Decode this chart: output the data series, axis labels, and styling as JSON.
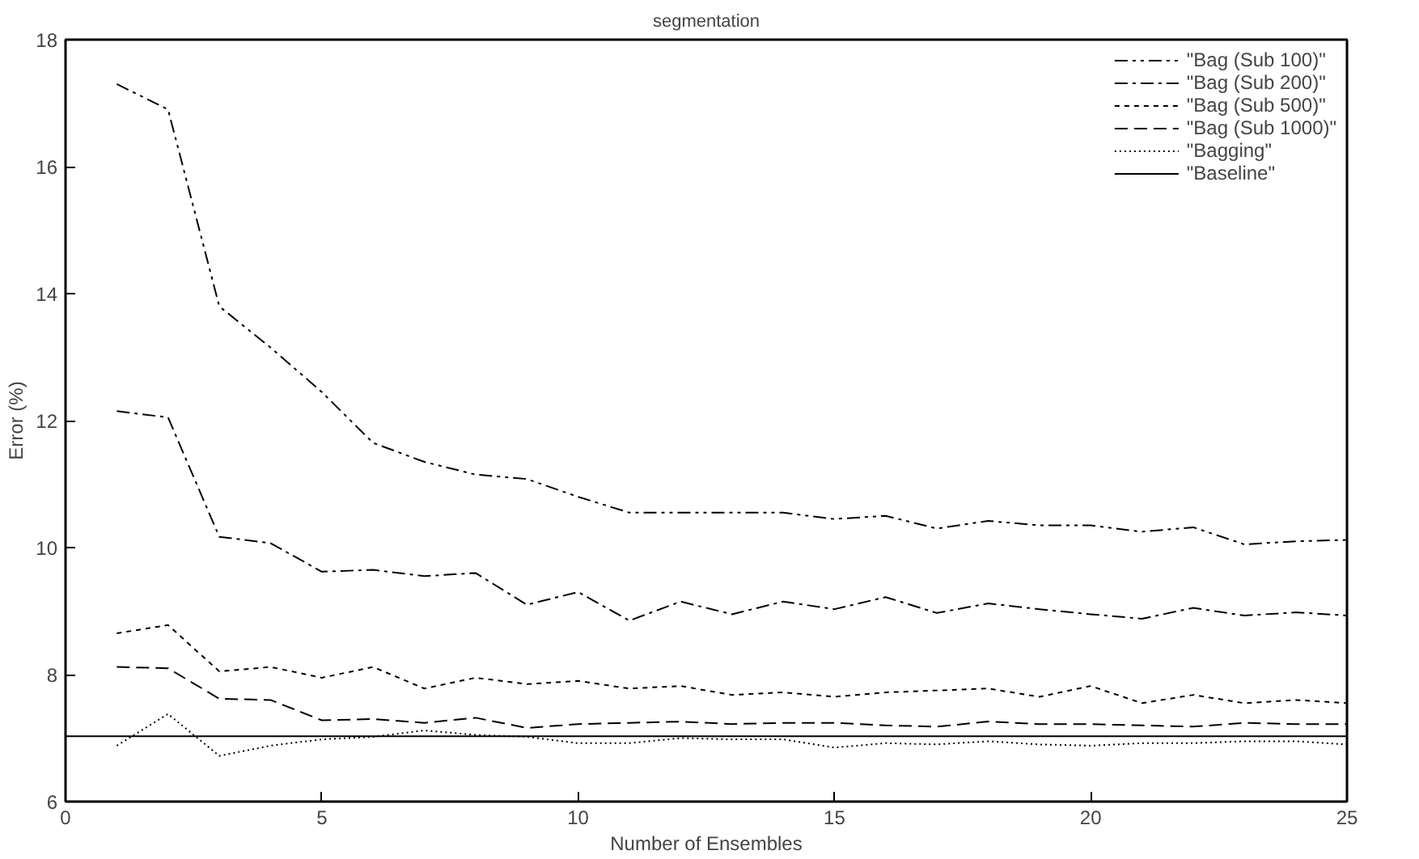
{
  "chart_data": {
    "type": "line",
    "title": "segmentation",
    "xlabel": "Number of Ensembles",
    "ylabel": "Error (%)",
    "x": [
      1,
      2,
      3,
      4,
      5,
      6,
      7,
      8,
      9,
      10,
      11,
      12,
      13,
      14,
      15,
      16,
      17,
      18,
      19,
      20,
      21,
      22,
      23,
      24,
      25
    ],
    "series": [
      {
        "name": "\"Bag (Sub 100)\"",
        "color": "#000000",
        "line_style": "dashdotdot",
        "values": [
          17.3,
          16.9,
          13.8,
          13.15,
          12.45,
          11.65,
          11.35,
          11.15,
          11.08,
          10.8,
          10.55,
          10.55,
          10.55,
          10.55,
          10.45,
          10.5,
          10.3,
          10.42,
          10.35,
          10.35,
          10.25,
          10.32,
          10.05,
          10.1,
          10.12
        ]
      },
      {
        "name": "\"Bag (Sub 200)\"",
        "color": "#000000",
        "line_style": "dashdot",
        "values": [
          12.15,
          12.05,
          10.17,
          10.07,
          9.62,
          9.65,
          9.55,
          9.6,
          9.1,
          9.3,
          8.85,
          9.15,
          8.95,
          9.15,
          9.03,
          9.22,
          8.97,
          9.12,
          9.03,
          8.95,
          8.88,
          9.05,
          8.93,
          8.98,
          8.93
        ]
      },
      {
        "name": "\"Bag (Sub 500)\"",
        "color": "#000000",
        "line_style": "shortdash",
        "values": [
          8.65,
          8.78,
          8.05,
          8.12,
          7.95,
          8.12,
          7.78,
          7.95,
          7.85,
          7.9,
          7.78,
          7.82,
          7.68,
          7.72,
          7.65,
          7.72,
          7.75,
          7.78,
          7.65,
          7.82,
          7.55,
          7.68,
          7.55,
          7.6,
          7.55
        ]
      },
      {
        "name": "\"Bag (Sub 1000)\"",
        "color": "#000000",
        "line_style": "dashed",
        "values": [
          8.12,
          8.1,
          7.62,
          7.6,
          7.28,
          7.3,
          7.24,
          7.32,
          7.16,
          7.22,
          7.24,
          7.26,
          7.22,
          7.24,
          7.24,
          7.2,
          7.18,
          7.26,
          7.22,
          7.22,
          7.2,
          7.18,
          7.24,
          7.22,
          7.22
        ]
      },
      {
        "name": "\"Bagging\"",
        "color": "#000000",
        "line_style": "dotted",
        "values": [
          6.88,
          7.38,
          6.72,
          6.88,
          6.98,
          7.02,
          7.12,
          7.05,
          7.02,
          6.92,
          6.92,
          7.0,
          6.98,
          6.98,
          6.85,
          6.92,
          6.9,
          6.95,
          6.9,
          6.88,
          6.92,
          6.92,
          6.95,
          6.95,
          6.9
        ]
      },
      {
        "name": "\"Baseline\"",
        "color": "#000000",
        "line_style": "solid",
        "x": [
          0,
          25
        ],
        "values": [
          7.03,
          7.03
        ]
      }
    ],
    "xlim": [
      0,
      25
    ],
    "xticks": [
      0,
      5,
      10,
      15,
      20,
      25
    ],
    "ylim": [
      6,
      18
    ],
    "yticks": [
      6,
      8,
      10,
      12,
      14,
      16,
      18
    ],
    "grid": false,
    "legend": "top right",
    "marker": "none"
  }
}
